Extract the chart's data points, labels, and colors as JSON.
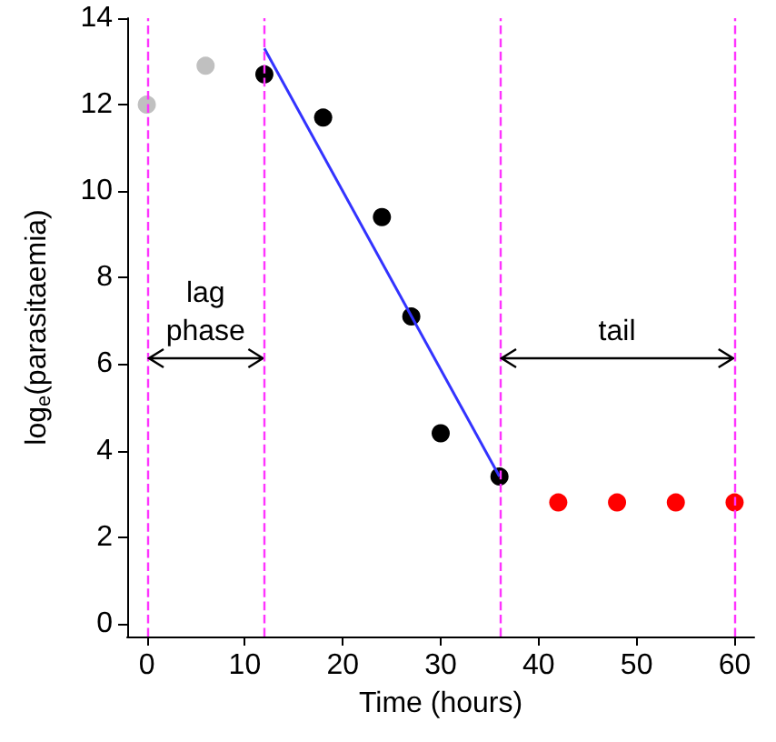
{
  "chart_data": {
    "type": "scatter",
    "xlabel": "Time (hours)",
    "ylabel": "log$_{e}$(parasitaemia)",
    "xlim": [
      -2,
      62
    ],
    "xticks": [
      0,
      10,
      20,
      30,
      40,
      50,
      60
    ],
    "ylim": [
      -0.3,
      14
    ],
    "yticks": [
      0,
      2,
      4,
      6,
      8,
      10,
      12,
      14
    ],
    "grid": false,
    "marker": "circle",
    "series": [
      {
        "color": "#c0c0c0",
        "x": [
          0,
          6
        ],
        "values": [
          12.0,
          12.9
        ]
      },
      {
        "color": "#000000",
        "x": [
          12,
          18,
          24,
          27,
          30,
          36
        ],
        "values": [
          12.7,
          11.7,
          9.4,
          7.1,
          4.4,
          3.4
        ]
      },
      {
        "color": "#ff0000",
        "x": [
          42,
          48,
          54,
          60
        ],
        "values": [
          2.8,
          2.8,
          2.8,
          2.8
        ]
      },
      {
        "type": "line",
        "color": "#3333ff",
        "x": [
          12,
          36
        ],
        "values": [
          13.3,
          3.4
        ],
        "marker": "none"
      }
    ],
    "ref_lines": [
      {
        "axis": "x",
        "value": 0,
        "color": "#ff33ff",
        "line_style": "dashed"
      },
      {
        "axis": "x",
        "value": 12,
        "color": "#ff33ff",
        "line_style": "dashed"
      },
      {
        "axis": "x",
        "value": 36,
        "color": "#ff33ff",
        "line_style": "dashed"
      },
      {
        "axis": "x",
        "value": 60,
        "color": "#ff33ff",
        "line_style": "dashed"
      }
    ],
    "annotations": [
      "lag phase",
      "tail"
    ]
  }
}
